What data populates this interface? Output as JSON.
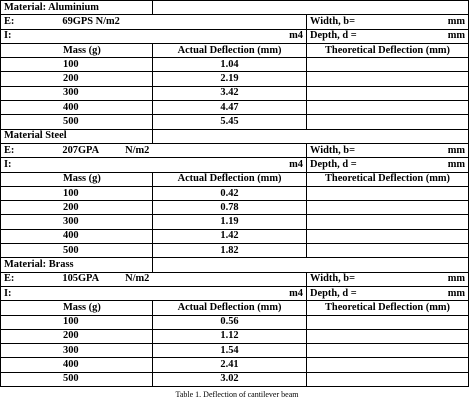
{
  "materials": [
    {
      "material_label": "Material: Aluminium",
      "e_label": "E:",
      "e_value": "69GPS N/m2",
      "e_unit": "",
      "i_label": "I:",
      "i_unit": "m4",
      "width_label": "Width, b=",
      "width_unit": "mm",
      "depth_label": "Depth, d =",
      "depth_unit": "mm",
      "col_mass": "Mass (g)",
      "col_actual": "Actual Deflection (mm)",
      "col_theoretical": "Theoretical Deflection (mm)",
      "rows": [
        {
          "mass": "100",
          "actual": "1.04",
          "theoretical": ""
        },
        {
          "mass": "200",
          "actual": "2.19",
          "theoretical": ""
        },
        {
          "mass": "300",
          "actual": "3.42",
          "theoretical": ""
        },
        {
          "mass": "400",
          "actual": "4.47",
          "theoretical": ""
        },
        {
          "mass": "500",
          "actual": "5.45",
          "theoretical": ""
        }
      ]
    },
    {
      "material_label": "Material Steel",
      "e_label": "E:",
      "e_value": "207GPA",
      "e_unit": "N/m2",
      "i_label": "I:",
      "i_unit": "m4",
      "width_label": "Width, b=",
      "width_unit": "mm",
      "depth_label": "Depth, d =",
      "depth_unit": "mm",
      "col_mass": "Mass (g)",
      "col_actual": "Actual Deflection (mm)",
      "col_theoretical": "Theoretical Deflection (mm)",
      "rows": [
        {
          "mass": "100",
          "actual": "0.42",
          "theoretical": ""
        },
        {
          "mass": "200",
          "actual": "0.78",
          "theoretical": ""
        },
        {
          "mass": "300",
          "actual": "1.19",
          "theoretical": ""
        },
        {
          "mass": "400",
          "actual": "1.42",
          "theoretical": ""
        },
        {
          "mass": "500",
          "actual": "1.82",
          "theoretical": ""
        }
      ]
    },
    {
      "material_label": "Material: Brass",
      "e_label": "E:",
      "e_value": "105GPA",
      "e_unit": "N/m2",
      "i_label": "I:",
      "i_unit": "m4",
      "width_label": "Width, b=",
      "width_unit": "mm",
      "depth_label": "Depth, d =",
      "depth_unit": "mm",
      "col_mass": "Mass (g)",
      "col_actual": "Actual Deflection (mm)",
      "col_theoretical": "Theoretical Deflection (mm)",
      "rows": [
        {
          "mass": "100",
          "actual": "0.56",
          "theoretical": ""
        },
        {
          "mass": "200",
          "actual": "1.12",
          "theoretical": ""
        },
        {
          "mass": "300",
          "actual": "1.54",
          "theoretical": ""
        },
        {
          "mass": "400",
          "actual": "2.41",
          "theoretical": ""
        },
        {
          "mass": "500",
          "actual": "3.02",
          "theoretical": ""
        }
      ]
    }
  ],
  "caption": "Table 1. Deflection of cantilever beam"
}
